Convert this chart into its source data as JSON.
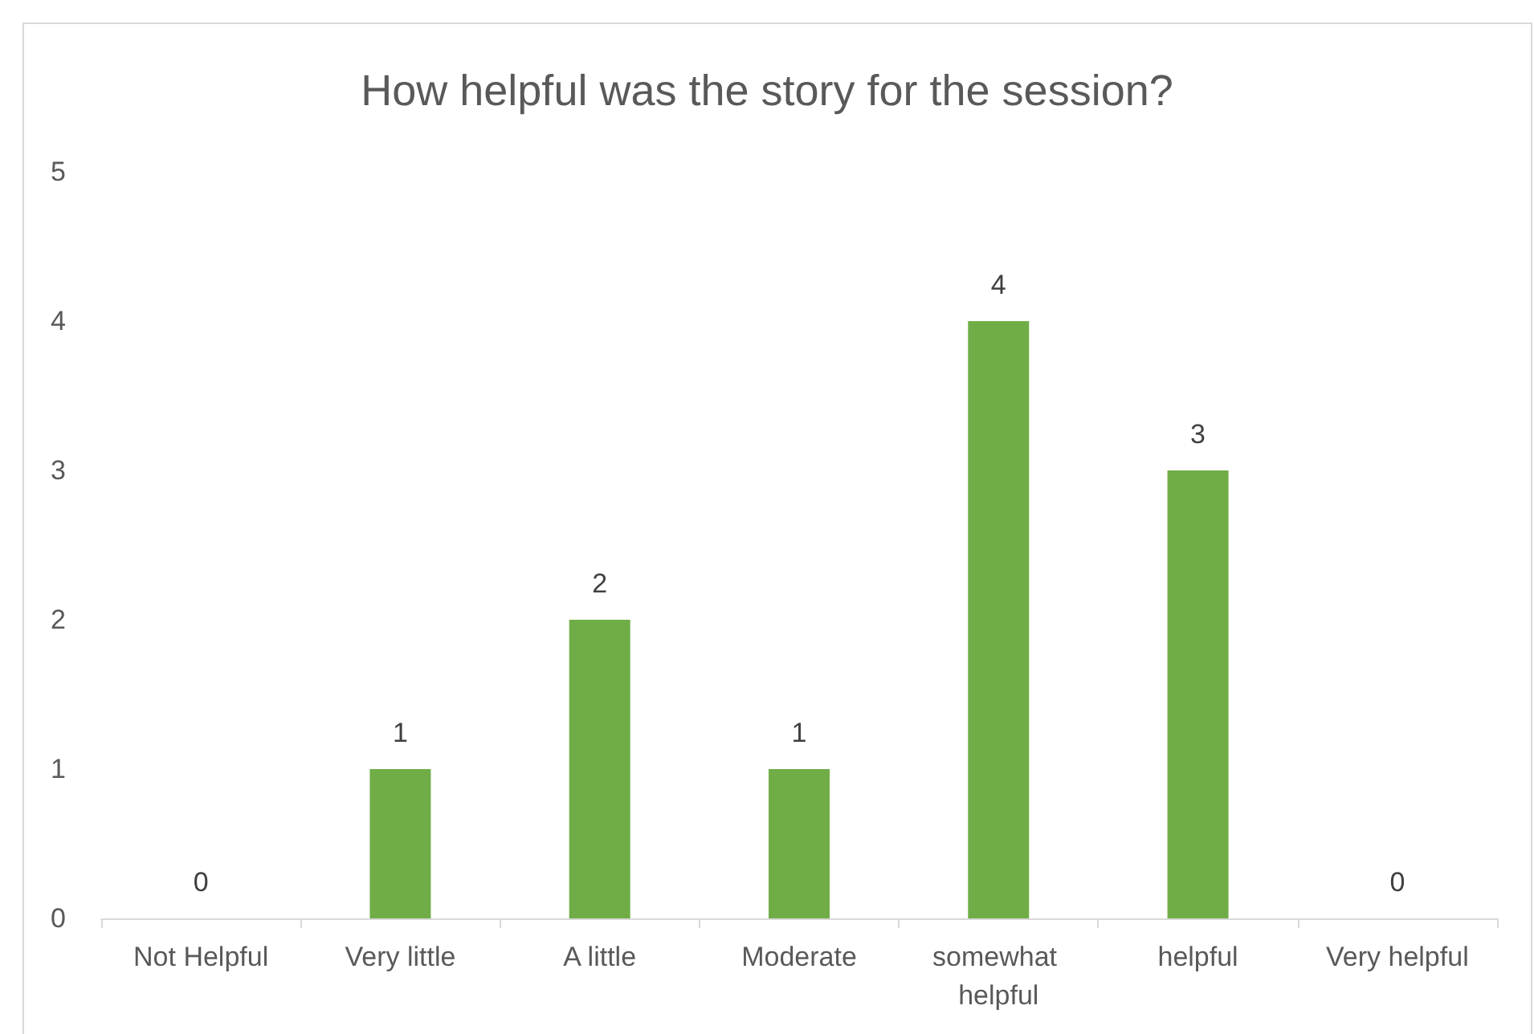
{
  "chart_data": {
    "type": "bar",
    "title": "How helpful was the story for the session?",
    "categories": [
      "Not Helpful",
      "Very little",
      "A little",
      "Moderate",
      "somewhat helpful",
      "helpful",
      "Very helpful"
    ],
    "values": [
      0,
      1,
      2,
      1,
      4,
      3,
      0
    ],
    "color": "#70ad47",
    "ylim": [
      0,
      5
    ],
    "yticks": [
      0,
      1,
      2,
      3,
      4,
      5
    ],
    "grid": false,
    "data_labels": true
  }
}
